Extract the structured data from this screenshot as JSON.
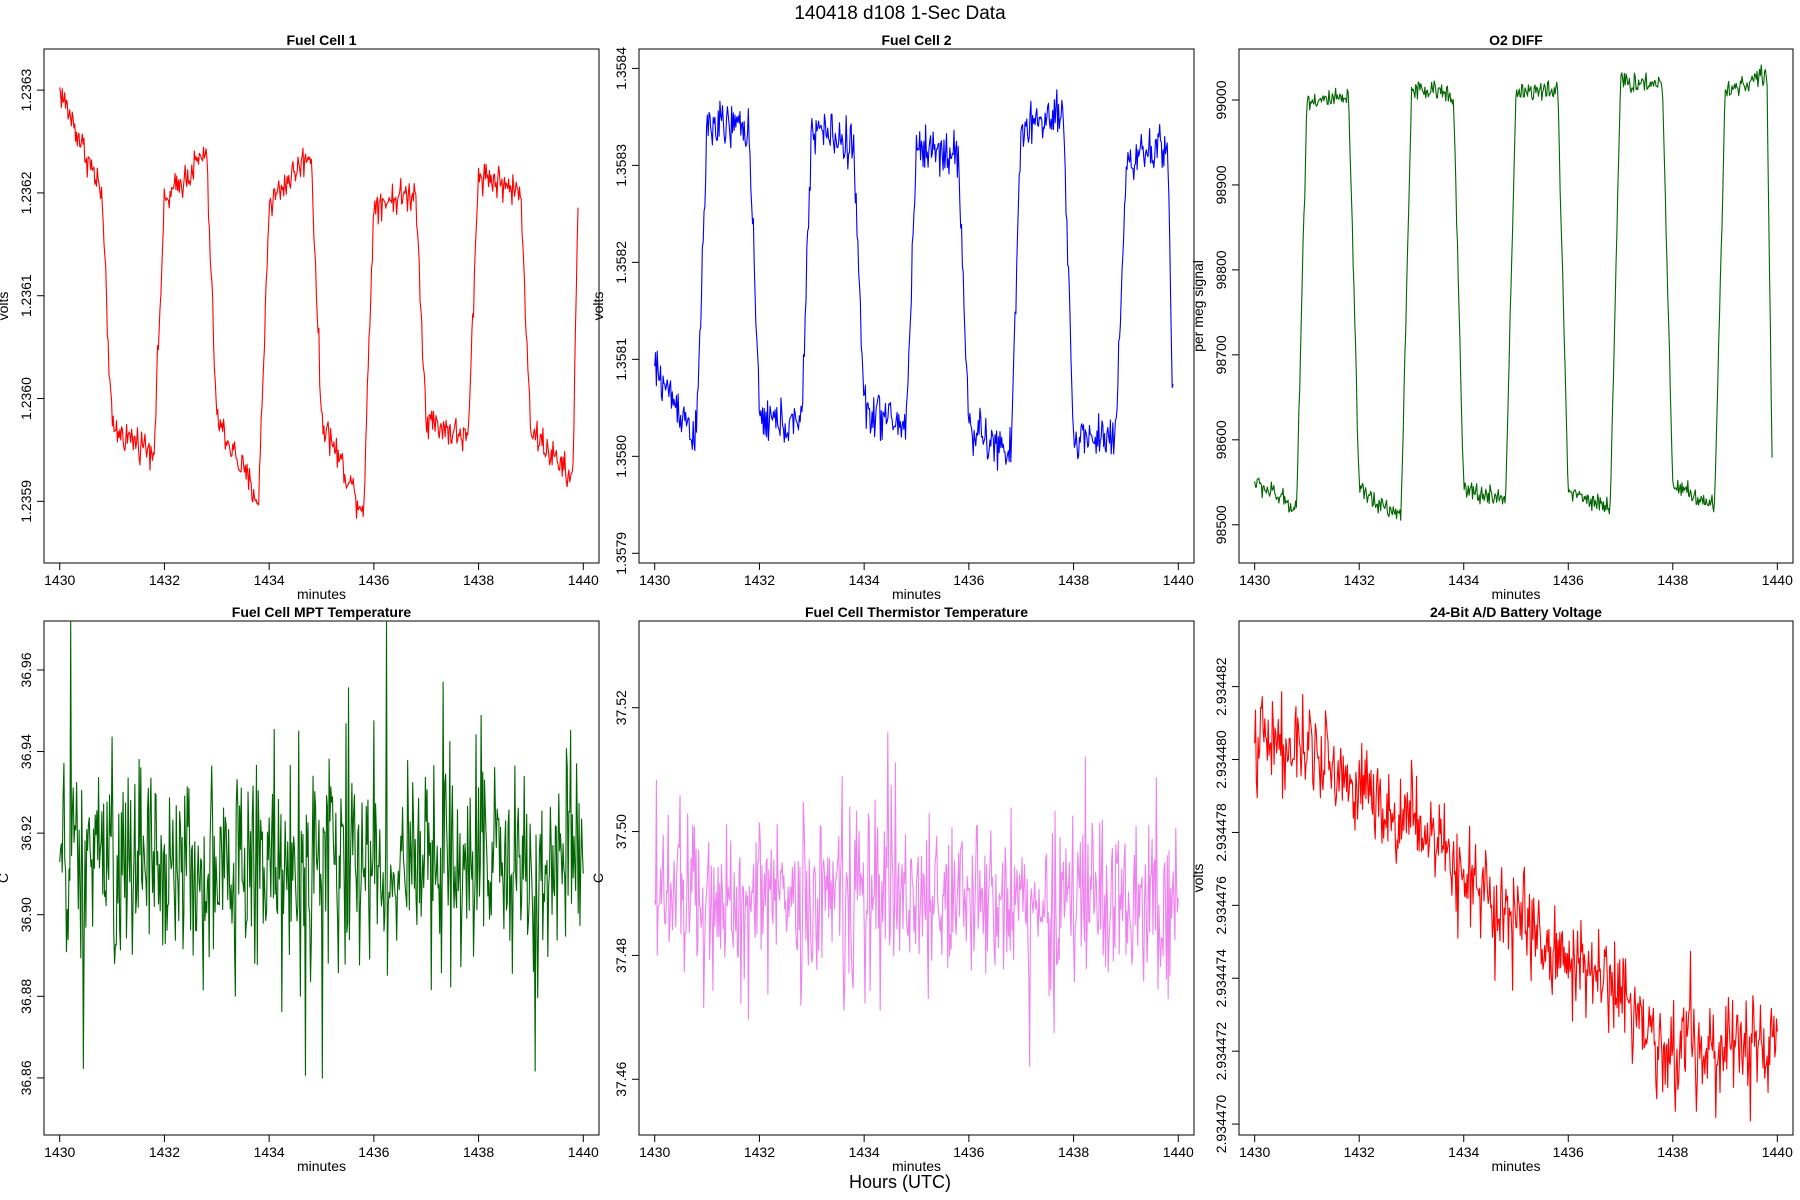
{
  "title": "140418   d108   1-Sec Data",
  "outer_xlabel": "Hours (UTC)",
  "chart_data": [
    {
      "type": "line",
      "title": "Fuel Cell 1",
      "xlabel": "minutes",
      "ylabel": "volts",
      "color": "#ff0000",
      "xlim": [
        1429.7,
        1440.3
      ],
      "ylim": [
        1.23584,
        1.23634
      ],
      "xticks": [
        1430,
        1432,
        1434,
        1436,
        1438,
        1440
      ],
      "yticks": [
        1.2359,
        1.236,
        1.2361,
        1.2362,
        1.2363
      ],
      "ytick_labels": [
        "1.2359",
        "1.2360",
        "1.2361",
        "1.2362",
        "1.2363"
      ],
      "pattern": "square",
      "noise": 1.2e-05,
      "x": [
        1430,
        1430.8,
        1431.0,
        1431.8,
        1432.0,
        1432.8,
        1433.0,
        1433.8,
        1434.0,
        1434.8,
        1435.0,
        1435.8,
        1436.0,
        1436.8,
        1437.0,
        1437.8,
        1438.0,
        1438.8,
        1439.0,
        1439.8,
        1439.9
      ],
      "y": [
        1.2363,
        1.2362,
        1.23597,
        1.23595,
        1.23619,
        1.23624,
        1.23598,
        1.2359,
        1.23619,
        1.23624,
        1.23598,
        1.23589,
        1.23619,
        1.2362,
        1.23598,
        1.23596,
        1.23622,
        1.2362,
        1.23597,
        1.23592,
        1.2362
      ]
    },
    {
      "type": "line",
      "title": "Fuel Cell 2",
      "xlabel": "minutes",
      "ylabel": "volts",
      "color": "#0000ff",
      "xlim": [
        1429.7,
        1440.3
      ],
      "ylim": [
        1.35789,
        1.35842
      ],
      "xticks": [
        1430,
        1432,
        1434,
        1436,
        1438,
        1440
      ],
      "yticks": [
        1.3579,
        1.358,
        1.3581,
        1.3582,
        1.3583,
        1.3584
      ],
      "ytick_labels": [
        "1.3579",
        "1.3580",
        "1.3581",
        "1.3582",
        "1.3583",
        "1.3584"
      ],
      "pattern": "square",
      "noise": 1.8e-05,
      "x": [
        1430,
        1430.8,
        1431.0,
        1431.8,
        1432.0,
        1432.8,
        1433.0,
        1433.8,
        1434.0,
        1434.8,
        1435.0,
        1435.8,
        1436.0,
        1436.8,
        1437.0,
        1437.8,
        1438.0,
        1438.8,
        1439.0,
        1439.8,
        1439.9
      ],
      "y": [
        1.35809,
        1.35802,
        1.35834,
        1.35834,
        1.35804,
        1.35803,
        1.35834,
        1.35832,
        1.35805,
        1.35803,
        1.35832,
        1.35831,
        1.35803,
        1.358,
        1.35834,
        1.35835,
        1.35802,
        1.35802,
        1.3583,
        1.35832,
        1.35805
      ]
    },
    {
      "type": "line",
      "title": "O2 DIFF",
      "xlabel": "minutes",
      "ylabel": "per meg signal",
      "color": "#006400",
      "xlim": [
        1429.7,
        1440.3
      ],
      "ylim": [
        98455,
        99060
      ],
      "xticks": [
        1430,
        1432,
        1434,
        1436,
        1438,
        1440
      ],
      "yticks": [
        98500,
        98600,
        98700,
        98800,
        98900,
        99000
      ],
      "ytick_labels": [
        "98500",
        "98600",
        "98700",
        "98800",
        "98900",
        "99000"
      ],
      "pattern": "square",
      "noise": 9,
      "x": [
        1430,
        1430.8,
        1431.0,
        1431.8,
        1432.0,
        1432.8,
        1433.0,
        1433.8,
        1434.0,
        1434.8,
        1435.0,
        1435.8,
        1436.0,
        1436.8,
        1437.0,
        1437.8,
        1438.0,
        1438.8,
        1439.0,
        1439.8,
        1439.9
      ],
      "y": [
        98550,
        98520,
        99000,
        99000,
        98540,
        98510,
        99010,
        99010,
        98540,
        98530,
        99010,
        99010,
        98540,
        98520,
        99020,
        99020,
        98550,
        98520,
        99010,
        99030,
        98580
      ]
    },
    {
      "type": "line",
      "title": "Fuel Cell MPT Temperature",
      "xlabel": "minutes",
      "ylabel": "C",
      "color": "#006400",
      "xlim": [
        1429.7,
        1440.3
      ],
      "ylim": [
        36.846,
        36.972
      ],
      "xticks": [
        1430,
        1432,
        1434,
        1436,
        1438,
        1440
      ],
      "yticks": [
        36.86,
        36.88,
        36.9,
        36.92,
        36.94,
        36.96
      ],
      "ytick_labels": [
        "36.86",
        "36.88",
        "36.90",
        "36.92",
        "36.94",
        "36.96"
      ],
      "pattern": "noise",
      "noise": 0.018,
      "x": [
        1430,
        1440
      ],
      "y": [
        36.912,
        36.912
      ]
    },
    {
      "type": "line",
      "title": "Fuel Cell Thermistor Temperature",
      "xlabel": "minutes",
      "ylabel": "C",
      "color": "#ee82ee",
      "xlim": [
        1429.7,
        1440.3
      ],
      "ylim": [
        37.451,
        37.534
      ],
      "xticks": [
        1430,
        1432,
        1434,
        1436,
        1438,
        1440
      ],
      "yticks": [
        37.46,
        37.48,
        37.5,
        37.52
      ],
      "ytick_labels": [
        "37.46",
        "37.48",
        "37.50",
        "37.52"
      ],
      "pattern": "noise",
      "noise": 0.01,
      "x": [
        1430,
        1440
      ],
      "y": [
        37.489,
        37.489
      ]
    },
    {
      "type": "line",
      "title": "24-Bit A/D Battery Voltage",
      "xlabel": "minutes",
      "ylabel": "volts",
      "color": "#ff0000",
      "xlim": [
        1429.7,
        1440.3
      ],
      "ylim": [
        2.9344697,
        2.9344838
      ],
      "xticks": [
        1430,
        1432,
        1434,
        1436,
        1438,
        1440
      ],
      "yticks": [
        2.93447,
        2.934472,
        2.934474,
        2.934476,
        2.934478,
        2.93448,
        2.934482
      ],
      "ytick_labels": [
        "2.934470",
        "2.934472",
        "2.934474",
        "2.934476",
        "2.934478",
        "2.934480",
        "2.934482"
      ],
      "pattern": "noise",
      "noise": 9e-07,
      "x": [
        1430,
        1431,
        1432,
        1433,
        1434,
        1435,
        1436,
        1437,
        1438,
        1439,
        1440
      ],
      "y": [
        2.9344805,
        2.9344802,
        2.9344792,
        2.9344783,
        2.934477,
        2.9344758,
        2.9344745,
        2.9344735,
        2.9344718,
        2.9344722,
        2.9344722
      ]
    }
  ]
}
